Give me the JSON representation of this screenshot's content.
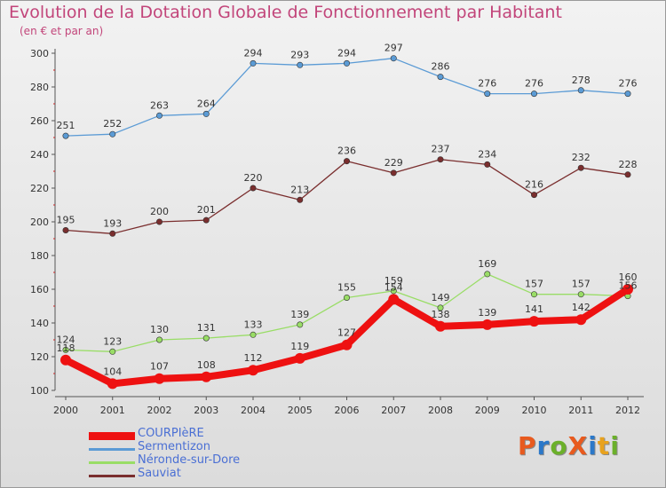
{
  "header": {
    "title": "Evolution de la Dotation Globale de Fonctionnement par Habitant",
    "subtitle": "(en € et par an)"
  },
  "logo": {
    "text": "ProXiti",
    "colors": [
      "#e85a1e",
      "#2b78c9",
      "#6bb02a",
      "#e85a1e",
      "#2b78c9",
      "#e8a21e",
      "#6bb02a"
    ]
  },
  "chart_data": {
    "type": "line",
    "x": [
      "2000",
      "2001",
      "2002",
      "2003",
      "2004",
      "2005",
      "2006",
      "2007",
      "2008",
      "2009",
      "2010",
      "2011",
      "2012"
    ],
    "ylim": [
      100,
      300
    ],
    "yticks": [
      100,
      120,
      140,
      160,
      180,
      200,
      220,
      240,
      260,
      280,
      300
    ],
    "grid": false,
    "legend_position": "bottom",
    "series": [
      {
        "name": "COURPIèRE",
        "color": "#ee1111",
        "emphasis": true,
        "values": [
          118,
          104,
          107,
          108,
          112,
          119,
          127,
          154,
          138,
          139,
          141,
          142,
          160
        ]
      },
      {
        "name": "Sermentizon",
        "color": "#5b9bd5",
        "emphasis": false,
        "values": [
          251,
          252,
          263,
          264,
          294,
          293,
          294,
          297,
          286,
          276,
          276,
          278,
          276
        ]
      },
      {
        "name": "Néronde-sur-Dore",
        "color": "#99dd66",
        "emphasis": false,
        "values": [
          124,
          123,
          130,
          131,
          133,
          139,
          155,
          159,
          149,
          169,
          157,
          157,
          156
        ]
      },
      {
        "name": "Sauviat",
        "color": "#7a2e2e",
        "emphasis": false,
        "values": [
          195,
          193,
          200,
          201,
          220,
          213,
          236,
          229,
          237,
          234,
          216,
          232,
          228
        ]
      }
    ]
  }
}
